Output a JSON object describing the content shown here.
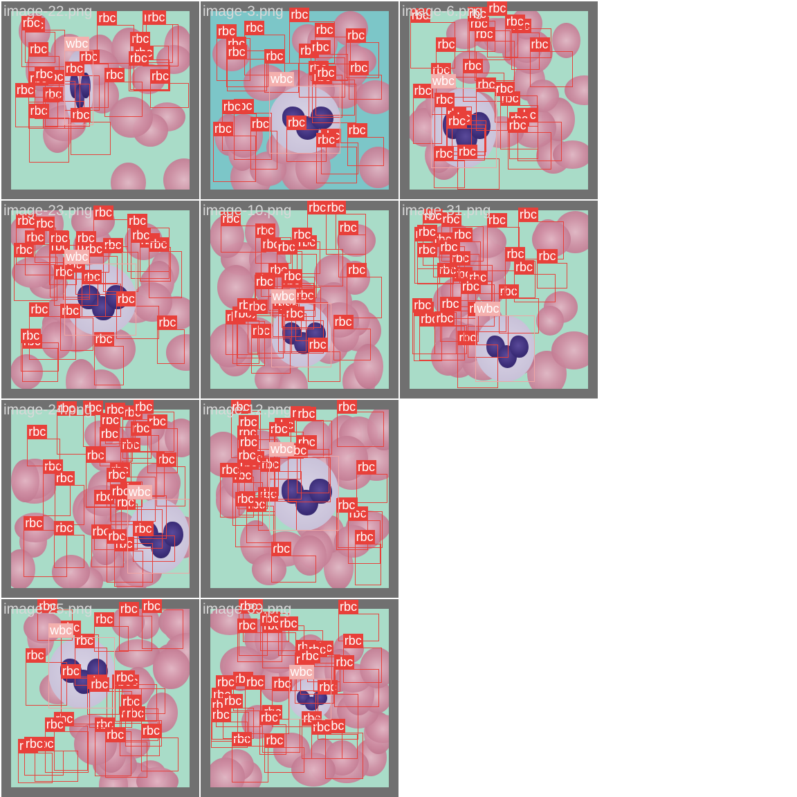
{
  "title": "",
  "colors": {
    "tile_border": "#707070",
    "rbc_box": "#e8403a",
    "wbc_box": "#f0a5a5",
    "label_text": "#ffffff"
  },
  "class_labels": {
    "rbc": "rbc",
    "wbc": "wbc"
  },
  "tiles": [
    {
      "row": 0,
      "col": 0,
      "filename": "image-22.png",
      "background": "#a9dcc8",
      "wbc_count": 1,
      "rbc_count": 20
    },
    {
      "row": 0,
      "col": 1,
      "filename": "image-3.png",
      "background": "#7cc6c8",
      "wbc_count": 1,
      "rbc_count": 22
    },
    {
      "row": 0,
      "col": 2,
      "filename": "image-6.png",
      "background": "#a9dcc8",
      "wbc_count": 1,
      "rbc_count": 24
    },
    {
      "row": 1,
      "col": 0,
      "filename": "image-23.png",
      "background": "#a9dcc8",
      "wbc_count": 1,
      "rbc_count": 26
    },
    {
      "row": 1,
      "col": 1,
      "filename": "image-10.png",
      "background": "#a9dcc8",
      "wbc_count": 1,
      "rbc_count": 28
    },
    {
      "row": 1,
      "col": 2,
      "filename": "image-31.png",
      "background": "#a9dcc8",
      "wbc_count": 1,
      "rbc_count": 26
    },
    {
      "row": 2,
      "col": 0,
      "filename": "image-24.png",
      "background": "#a9dcc8",
      "wbc_count": 1,
      "rbc_count": 28
    },
    {
      "row": 2,
      "col": 1,
      "filename": "image-12.png",
      "background": "#a9dcc8",
      "wbc_count": 1,
      "rbc_count": 26
    },
    {
      "row": 3,
      "col": 0,
      "filename": "image-25.png",
      "background": "#a9dcc8",
      "wbc_count": 1,
      "rbc_count": 24
    },
    {
      "row": 3,
      "col": 1,
      "filename": "image-39.png",
      "background": "#a9dcc8",
      "wbc_count": 1,
      "rbc_count": 30
    }
  ]
}
